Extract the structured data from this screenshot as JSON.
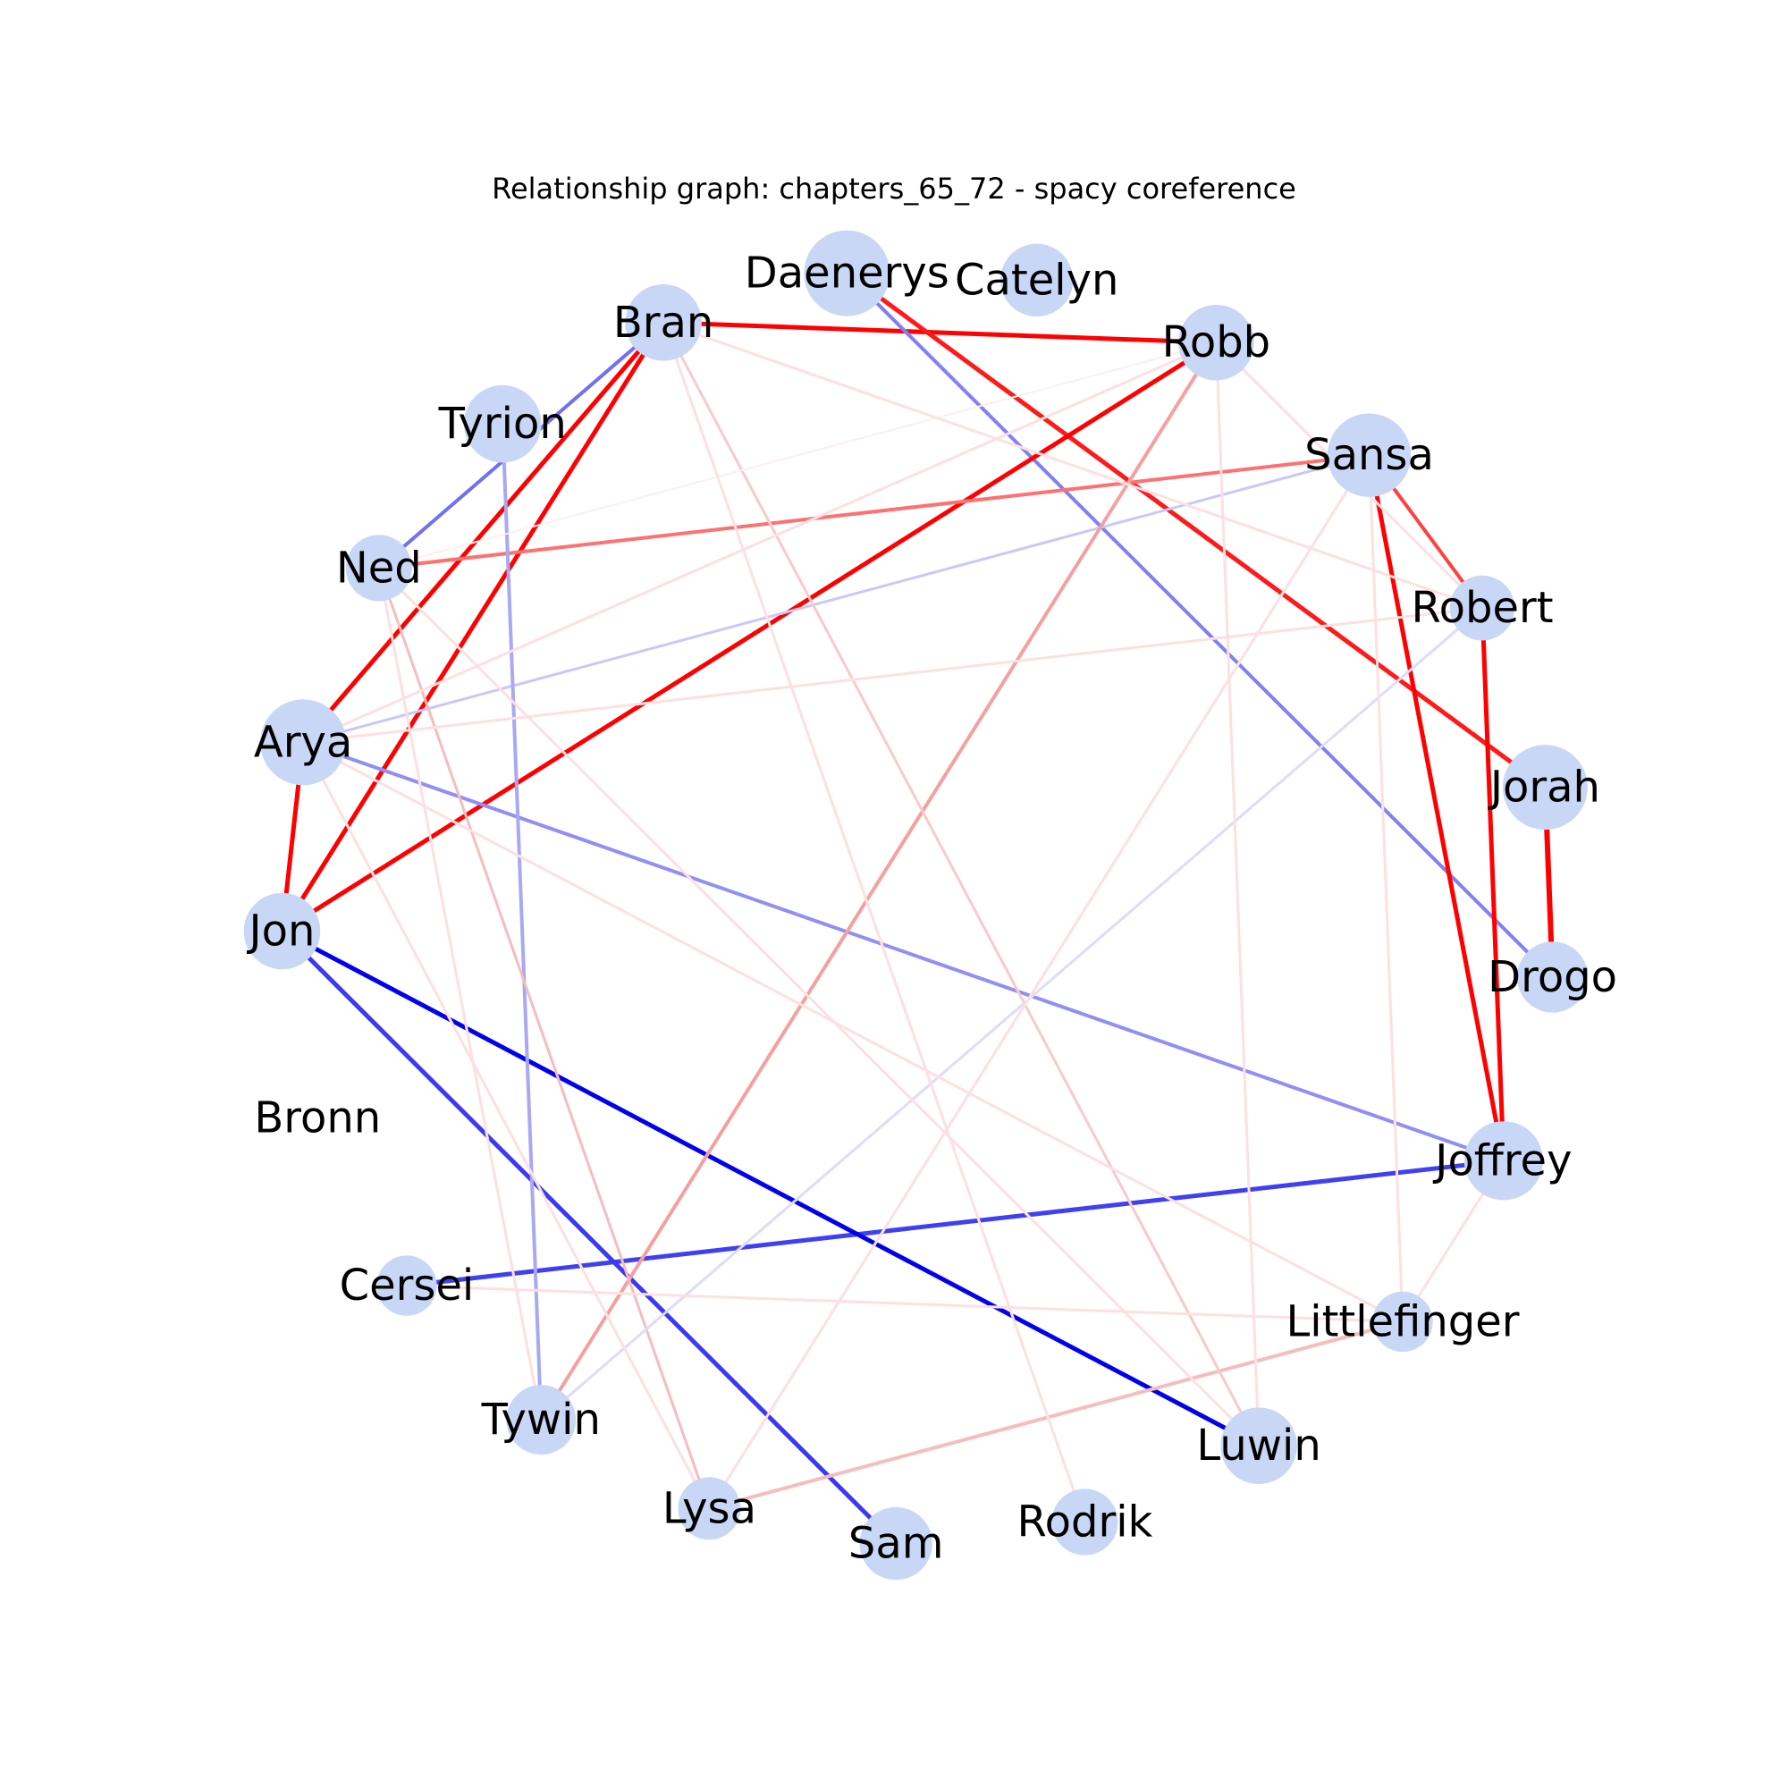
{
  "title": "Relationship graph: chapters_65_72 - spacy coreference",
  "node_color": "#c9d7f7",
  "nodes": [
    {
      "id": "Daenerys",
      "size": 1.0
    },
    {
      "id": "Catelyn",
      "size": 0.72
    },
    {
      "id": "Bran",
      "size": 0.8
    },
    {
      "id": "Robb",
      "size": 0.78
    },
    {
      "id": "Tyrion",
      "size": 0.82
    },
    {
      "id": "Sansa",
      "size": 0.95
    },
    {
      "id": "Ned",
      "size": 0.58
    },
    {
      "id": "Robert",
      "size": 0.55
    },
    {
      "id": "Arya",
      "size": 1.0
    },
    {
      "id": "Jorah",
      "size": 0.98
    },
    {
      "id": "Jon",
      "size": 0.8
    },
    {
      "id": "Drogo",
      "size": 0.68
    },
    {
      "id": "Bronn",
      "size": 0.0
    },
    {
      "id": "Joffrey",
      "size": 0.85
    },
    {
      "id": "Cersei",
      "size": 0.45
    },
    {
      "id": "Littlefinger",
      "size": 0.45
    },
    {
      "id": "Tywin",
      "size": 0.65
    },
    {
      "id": "Luwin",
      "size": 0.8
    },
    {
      "id": "Lysa",
      "size": 0.5
    },
    {
      "id": "Rodrik",
      "size": 0.58
    },
    {
      "id": "Sam",
      "size": 0.72
    }
  ],
  "edges": [
    {
      "source": "Robb",
      "target": "Bran",
      "color": "#ff0000",
      "width": 5
    },
    {
      "source": "Daenerys",
      "target": "Jorah",
      "color": "#ff1a1a",
      "width": 5
    },
    {
      "source": "Daenerys",
      "target": "Drogo",
      "color": "#8080f5",
      "width": 4
    },
    {
      "source": "Jorah",
      "target": "Drogo",
      "color": "#ff0000",
      "width": 6
    },
    {
      "source": "Robb",
      "target": "Jon",
      "color": "#ff0000",
      "width": 5
    },
    {
      "source": "Bran",
      "target": "Arya",
      "color": "#ff0000",
      "width": 5
    },
    {
      "source": "Bran",
      "target": "Jon",
      "color": "#ff0000",
      "width": 5
    },
    {
      "source": "Bran",
      "target": "Ned",
      "color": "#7070f2",
      "width": 4
    },
    {
      "source": "Arya",
      "target": "Jon",
      "color": "#ff0000",
      "width": 5
    },
    {
      "source": "Sansa",
      "target": "Joffrey",
      "color": "#ff0000",
      "width": 5
    },
    {
      "source": "Robert",
      "target": "Joffrey",
      "color": "#ff0000",
      "width": 5
    },
    {
      "source": "Sansa",
      "target": "Robert",
      "color": "#ff4040",
      "width": 4
    },
    {
      "source": "Sansa",
      "target": "Ned",
      "color": "#ff7070",
      "width": 4
    },
    {
      "source": "Sansa",
      "target": "Arya",
      "color": "#c8c8fb",
      "width": 3
    },
    {
      "source": "Joffrey",
      "target": "Arya",
      "color": "#8f8ff6",
      "width": 4
    },
    {
      "source": "Joffrey",
      "target": "Cersei",
      "color": "#4040f2",
      "width": 5
    },
    {
      "source": "Jon",
      "target": "Luwin",
      "color": "#0000ee",
      "width": 5
    },
    {
      "source": "Jon",
      "target": "Sam",
      "color": "#3a3af2",
      "width": 5
    },
    {
      "source": "Tyrion",
      "target": "Tywin",
      "color": "#a8a8f5",
      "width": 4
    },
    {
      "source": "Robb",
      "target": "Tywin",
      "color": "#f5a0a0",
      "width": 4
    },
    {
      "source": "Littlefinger",
      "target": "Lysa",
      "color": "#f7bcbc",
      "width": 4
    },
    {
      "source": "Ned",
      "target": "Lysa",
      "color": "#f7bcbc",
      "width": 3
    },
    {
      "source": "Bran",
      "target": "Luwin",
      "color": "#f8caca",
      "width": 3
    },
    {
      "source": "Robert",
      "target": "Tywin",
      "color": "#dcdcfb",
      "width": 3
    },
    {
      "source": "Robb",
      "target": "Luwin",
      "color": "#fde0e0",
      "width": 3
    },
    {
      "source": "Robb",
      "target": "Robert",
      "color": "#fde0e0",
      "width": 3
    },
    {
      "source": "Robb",
      "target": "Arya",
      "color": "#fde0e0",
      "width": 3
    },
    {
      "source": "Robb",
      "target": "Ned",
      "color": "#fbf0f0",
      "width": 2
    },
    {
      "source": "Bran",
      "target": "Robert",
      "color": "#fde0e0",
      "width": 3
    },
    {
      "source": "Bran",
      "target": "Rodrik",
      "color": "#fde0e0",
      "width": 3
    },
    {
      "source": "Sansa",
      "target": "Littlefinger",
      "color": "#fde0e0",
      "width": 3
    },
    {
      "source": "Sansa",
      "target": "Lysa",
      "color": "#fde0e0",
      "width": 3
    },
    {
      "source": "Robert",
      "target": "Arya",
      "color": "#fde0e0",
      "width": 3
    },
    {
      "source": "Ned",
      "target": "Luwin",
      "color": "#fde0e0",
      "width": 3
    },
    {
      "source": "Ned",
      "target": "Tywin",
      "color": "#fde0e0",
      "width": 3
    },
    {
      "source": "Arya",
      "target": "Littlefinger",
      "color": "#fde0e0",
      "width": 3
    },
    {
      "source": "Arya",
      "target": "Lysa",
      "color": "#fde0e0",
      "width": 3
    },
    {
      "source": "Joffrey",
      "target": "Littlefinger",
      "color": "#fde0e0",
      "width": 3
    },
    {
      "source": "Littlefinger",
      "target": "Cersei",
      "color": "#fde0e0",
      "width": 3
    }
  ]
}
